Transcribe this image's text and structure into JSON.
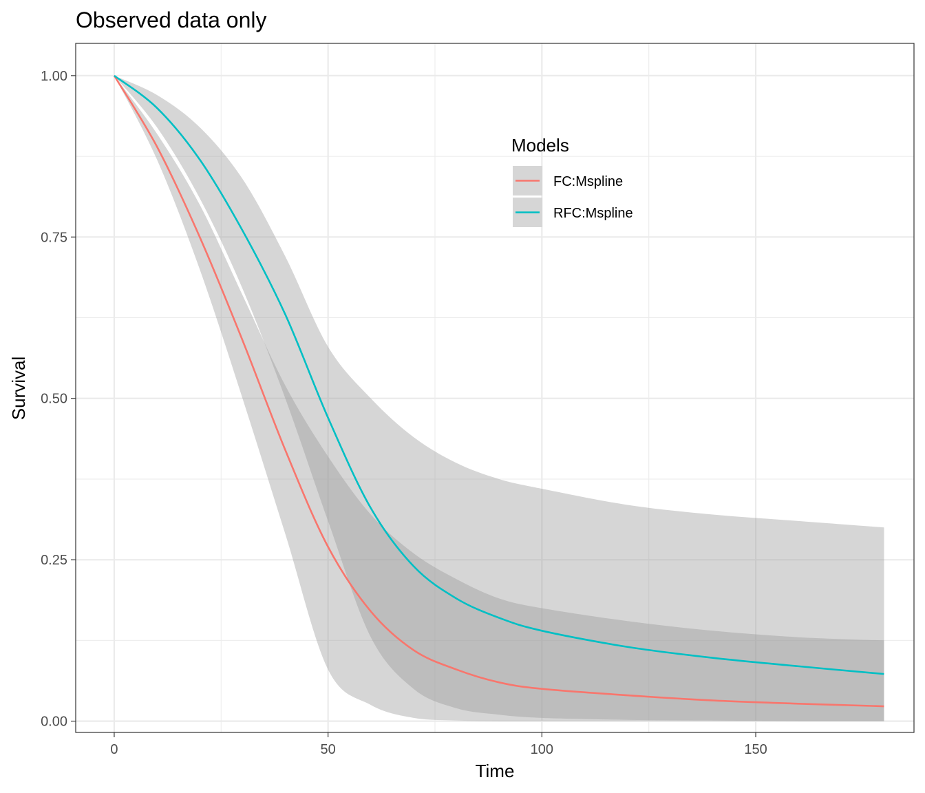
{
  "chart_data": {
    "type": "line",
    "title": "Observed data only",
    "xlabel": "Time",
    "ylabel": "Survival",
    "xlim": [
      -9,
      187
    ],
    "ylim": [
      -0.0175,
      1.05
    ],
    "x_ticks": [
      0,
      50,
      100,
      150
    ],
    "x_tick_labels": [
      "0",
      "50",
      "100",
      "150"
    ],
    "y_ticks": [
      0,
      0.25,
      0.5,
      0.75,
      1.0
    ],
    "y_tick_labels": [
      "0.00",
      "0.25",
      "0.50",
      "0.75",
      "1.00"
    ],
    "grid": true,
    "legend": {
      "title": "Models",
      "placement": "inside-top-right"
    },
    "x": [
      0,
      10,
      20,
      30,
      40,
      50,
      60,
      70,
      80,
      90,
      100,
      120,
      140,
      160,
      180
    ],
    "series": [
      {
        "name": "FC:Mspline",
        "color": "#F8766D",
        "values": [
          1.0,
          0.89,
          0.75,
          0.59,
          0.42,
          0.27,
          0.17,
          0.11,
          0.08,
          0.06,
          0.05,
          0.04,
          0.032,
          0.027,
          0.023
        ],
        "lower": [
          1.0,
          0.87,
          0.7,
          0.5,
          0.29,
          0.08,
          0.025,
          0.005,
          0.001,
          0.0,
          0.0,
          0.0,
          0.0,
          0.0,
          0.0
        ],
        "upper": [
          1.0,
          0.91,
          0.8,
          0.66,
          0.52,
          0.41,
          0.32,
          0.26,
          0.22,
          0.19,
          0.175,
          0.155,
          0.14,
          0.13,
          0.125
        ]
      },
      {
        "name": "RFC:Mspline",
        "color": "#00BFC4",
        "values": [
          1.0,
          0.95,
          0.87,
          0.76,
          0.63,
          0.47,
          0.33,
          0.24,
          0.19,
          0.16,
          0.14,
          0.115,
          0.098,
          0.085,
          0.073
        ],
        "lower": [
          1.0,
          0.92,
          0.81,
          0.67,
          0.5,
          0.31,
          0.13,
          0.05,
          0.02,
          0.01,
          0.005,
          0.002,
          0.001,
          0.0,
          0.0
        ],
        "upper": [
          1.0,
          0.97,
          0.92,
          0.84,
          0.72,
          0.58,
          0.5,
          0.44,
          0.4,
          0.375,
          0.36,
          0.335,
          0.32,
          0.31,
          0.3
        ]
      }
    ]
  }
}
